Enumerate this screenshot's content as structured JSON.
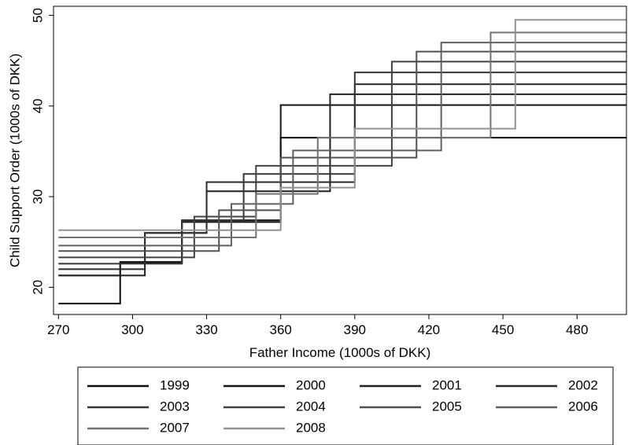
{
  "chart_data": {
    "type": "line",
    "subtype": "step",
    "title": "",
    "xlabel": "Father Income (1000s of DKK)",
    "ylabel": "Child Support Order (1000s of DKK)",
    "xlim": [
      268,
      500
    ],
    "ylim": [
      17,
      51
    ],
    "xticks": [
      270,
      300,
      330,
      360,
      390,
      420,
      450,
      480
    ],
    "yticks": [
      20,
      30,
      40,
      50
    ],
    "grid": false,
    "legend_position": "bottom",
    "series": [
      {
        "name": "1999",
        "color": "#0a0a0a",
        "x": [
          270,
          295,
          320,
          360,
          500
        ],
        "y": [
          18.2,
          22.7,
          27.2,
          36.5,
          36.5
        ]
      },
      {
        "name": "2000",
        "color": "#151515",
        "x": [
          270,
          295,
          320,
          360,
          500
        ],
        "y": [
          21.3,
          22.8,
          27.4,
          40.1,
          40.1
        ]
      },
      {
        "name": "2001",
        "color": "#202020",
        "x": [
          270,
          305,
          330,
          380,
          500
        ],
        "y": [
          21.3,
          26.0,
          30.6,
          41.3,
          41.3
        ]
      },
      {
        "name": "2002",
        "color": "#2b2b2b",
        "x": [
          270,
          305,
          330,
          390,
          500
        ],
        "y": [
          22.0,
          26.0,
          31.6,
          42.4,
          42.4
        ]
      },
      {
        "name": "2003",
        "color": "#363636",
        "x": [
          270,
          320,
          345,
          390,
          500
        ],
        "y": [
          22.6,
          27.3,
          32.5,
          43.7,
          43.7
        ]
      },
      {
        "name": "2004",
        "color": "#424242",
        "x": [
          270,
          325,
          350,
          405,
          500
        ],
        "y": [
          23.3,
          27.8,
          33.4,
          44.9,
          44.9
        ]
      },
      {
        "name": "2005",
        "color": "#505050",
        "x": [
          270,
          335,
          360,
          415,
          500
        ],
        "y": [
          24.0,
          28.5,
          34.3,
          46.0,
          46.0
        ]
      },
      {
        "name": "2006",
        "color": "#606060",
        "x": [
          270,
          340,
          365,
          425,
          500
        ],
        "y": [
          24.6,
          29.2,
          35.1,
          47.0,
          47.0
        ]
      },
      {
        "name": "2007",
        "color": "#727272",
        "x": [
          270,
          350,
          375,
          445,
          500
        ],
        "y": [
          25.5,
          30.3,
          36.5,
          48.1,
          48.1
        ]
      },
      {
        "name": "2008",
        "color": "#929292",
        "x": [
          270,
          360,
          390,
          455,
          500
        ],
        "y": [
          26.3,
          31.0,
          37.5,
          49.5,
          49.5
        ]
      }
    ]
  }
}
